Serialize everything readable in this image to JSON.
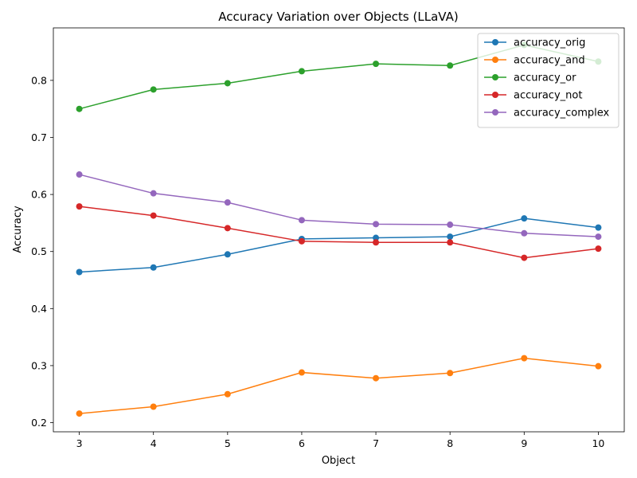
{
  "chart_data": {
    "type": "line",
    "title": "Accuracy Variation over Objects (LLaVA)",
    "xlabel": "Object",
    "ylabel": "Accuracy",
    "x": [
      3,
      4,
      5,
      6,
      7,
      8,
      9,
      10
    ],
    "xlim": [
      2.65,
      10.35
    ],
    "ylim": [
      0.184,
      0.892
    ],
    "yticks": [
      0.2,
      0.3,
      0.4,
      0.5,
      0.6,
      0.7,
      0.8
    ],
    "ytick_labels": [
      "0.2",
      "0.3",
      "0.4",
      "0.5",
      "0.6",
      "0.7",
      "0.8"
    ],
    "xticks": [
      3,
      4,
      5,
      6,
      7,
      8,
      9,
      10
    ],
    "xtick_labels": [
      "3",
      "4",
      "5",
      "6",
      "7",
      "8",
      "9",
      "10"
    ],
    "grid": false,
    "legend_position": "top-right",
    "series": [
      {
        "name": "accuracy_orig",
        "color": "#1f77b4",
        "values": [
          0.464,
          0.472,
          0.495,
          0.522,
          0.524,
          0.526,
          0.558,
          0.542
        ]
      },
      {
        "name": "accuracy_and",
        "color": "#ff7f0e",
        "values": [
          0.216,
          0.228,
          0.25,
          0.288,
          0.278,
          0.287,
          0.313,
          0.299
        ]
      },
      {
        "name": "accuracy_or",
        "color": "#2ca02c",
        "values": [
          0.75,
          0.784,
          0.795,
          0.816,
          0.829,
          0.826,
          0.862,
          0.833
        ]
      },
      {
        "name": "accuracy_not",
        "color": "#d62728",
        "values": [
          0.579,
          0.563,
          0.541,
          0.518,
          0.516,
          0.516,
          0.489,
          0.505
        ]
      },
      {
        "name": "accuracy_complex",
        "color": "#9467bd",
        "values": [
          0.635,
          0.602,
          0.586,
          0.555,
          0.548,
          0.547,
          0.532,
          0.526
        ]
      }
    ]
  }
}
